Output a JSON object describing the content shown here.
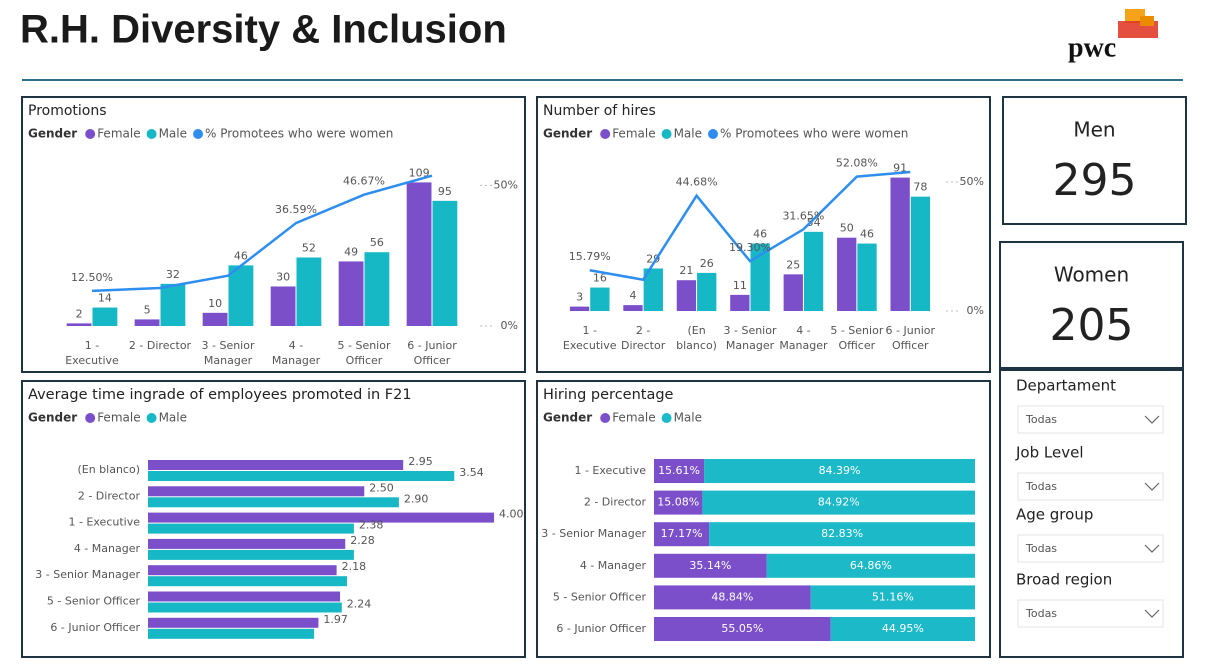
{
  "header": {
    "title": "R.H. Diversity & Inclusion",
    "logo": "pwc"
  },
  "chart_data": [
    {
      "type": "combo",
      "title": "Promotions",
      "legend_title": "Gender",
      "categories": [
        "1 - Executive",
        "2 - Director",
        "3 - Senior Manager",
        "4 - Manager",
        "5 - Senior Officer",
        "6 - Junior Officer"
      ],
      "series": [
        {
          "name": "Female",
          "color": "#7b4fc9",
          "values": [
            2,
            5,
            10,
            30,
            49,
            109
          ]
        },
        {
          "name": "Male",
          "color": "#16b8c6",
          "values": [
            14,
            32,
            46,
            52,
            56,
            95
          ]
        },
        {
          "name": "% Promotees who were women",
          "color": "#2e8ef0",
          "axis": "y2",
          "values": [
            12.5,
            13.51,
            17.86,
            36.59,
            46.67,
            53.43
          ],
          "value_labels": [
            "12.50%",
            null,
            null,
            "36.59%",
            "46.67%",
            null
          ]
        }
      ],
      "ylim": [
        0,
        126
      ],
      "y2lim": [
        0,
        59
      ],
      "y2ticks": [
        {
          "value": 0,
          "label": "0%"
        },
        {
          "value": 50,
          "label": "50%"
        }
      ]
    },
    {
      "type": "combo",
      "title": "Number of hires",
      "legend_title": "Gender",
      "categories": [
        "1 - Executive",
        "2 - Director",
        "(En blanco)",
        "3 - Senior Manager",
        "4 - Manager",
        "5 - Senior Officer",
        "6 - Junior Officer"
      ],
      "series": [
        {
          "name": "Female",
          "color": "#7b4fc9",
          "values": [
            3,
            4,
            21,
            11,
            25,
            50,
            91
          ]
        },
        {
          "name": "Male",
          "color": "#16b8c6",
          "values": [
            16,
            29,
            26,
            46,
            54,
            46,
            78
          ]
        },
        {
          "name": "% Promotees who were women",
          "color": "#2e8ef0",
          "axis": "y2",
          "values": [
            15.79,
            12.12,
            44.68,
            19.3,
            31.65,
            52.08,
            53.85
          ],
          "value_labels": [
            "15.79%",
            null,
            "44.68%",
            "19.30%",
            "31.65%",
            "52.08%",
            null
          ]
        }
      ],
      "ylim": [
        0,
        103
      ],
      "y2lim": [
        0,
        58.5
      ],
      "y2ticks": [
        {
          "value": 0,
          "label": "0%"
        },
        {
          "value": 50,
          "label": "50%"
        }
      ]
    },
    {
      "type": "hbar",
      "title": "Average time ingrade of employees promoted in F21",
      "legend_title": "Gender",
      "categories": [
        "(En blanco)",
        "2 - Director",
        "1 - Executive",
        "4 - Manager",
        "3 - Senior Manager",
        "5 - Senior Officer",
        "6 - Junior Officer"
      ],
      "series": [
        {
          "name": "Female",
          "color": "#7b4fc9",
          "values": [
            2.95,
            2.5,
            4.0,
            2.28,
            2.18,
            2.22,
            1.97
          ],
          "value_labels": [
            "2.95",
            "2.50",
            "4.00",
            "2.28",
            "2.18",
            null,
            "1.97"
          ]
        },
        {
          "name": "Male",
          "color": "#16b8c6",
          "values": [
            3.54,
            2.9,
            2.38,
            2.38,
            2.3,
            2.24,
            1.92
          ],
          "value_labels": [
            "3.54",
            "2.90",
            "2.38",
            null,
            null,
            "2.24",
            null
          ]
        }
      ],
      "xlim": [
        0,
        4.3
      ]
    },
    {
      "type": "stacked100",
      "title": "Hiring percentage",
      "legend_title": "Gender",
      "categories": [
        "1 - Executive",
        "2 - Director",
        "3 - Senior Manager",
        "4 - Manager",
        "5 - Senior Officer",
        "6 - Junior Officer"
      ],
      "series": [
        {
          "name": "Female",
          "color": "#7b4fc9",
          "values": [
            15.61,
            15.08,
            17.17,
            35.14,
            48.84,
            55.05
          ],
          "value_labels": [
            "15.61%",
            "15.08%",
            "17.17%",
            "35.14%",
            "48.84%",
            "55.05%"
          ]
        },
        {
          "name": "Male",
          "color": "#1cb9c9",
          "values": [
            84.39,
            84.92,
            82.83,
            64.86,
            51.16,
            44.95
          ],
          "value_labels": [
            "84.39%",
            "84.92%",
            "82.83%",
            "64.86%",
            "51.16%",
            "44.95%"
          ]
        }
      ],
      "xlim": [
        0,
        100
      ]
    }
  ],
  "cards": [
    {
      "label": "Men",
      "value": 295
    },
    {
      "label": "Women",
      "value": 205
    }
  ],
  "slicers": [
    {
      "label": "Departament",
      "selection": "Todas"
    },
    {
      "label": "Job Level",
      "selection": "Todas"
    },
    {
      "label": "Age group",
      "selection": "Todas"
    },
    {
      "label": "Broad region",
      "selection": "Todas"
    }
  ]
}
